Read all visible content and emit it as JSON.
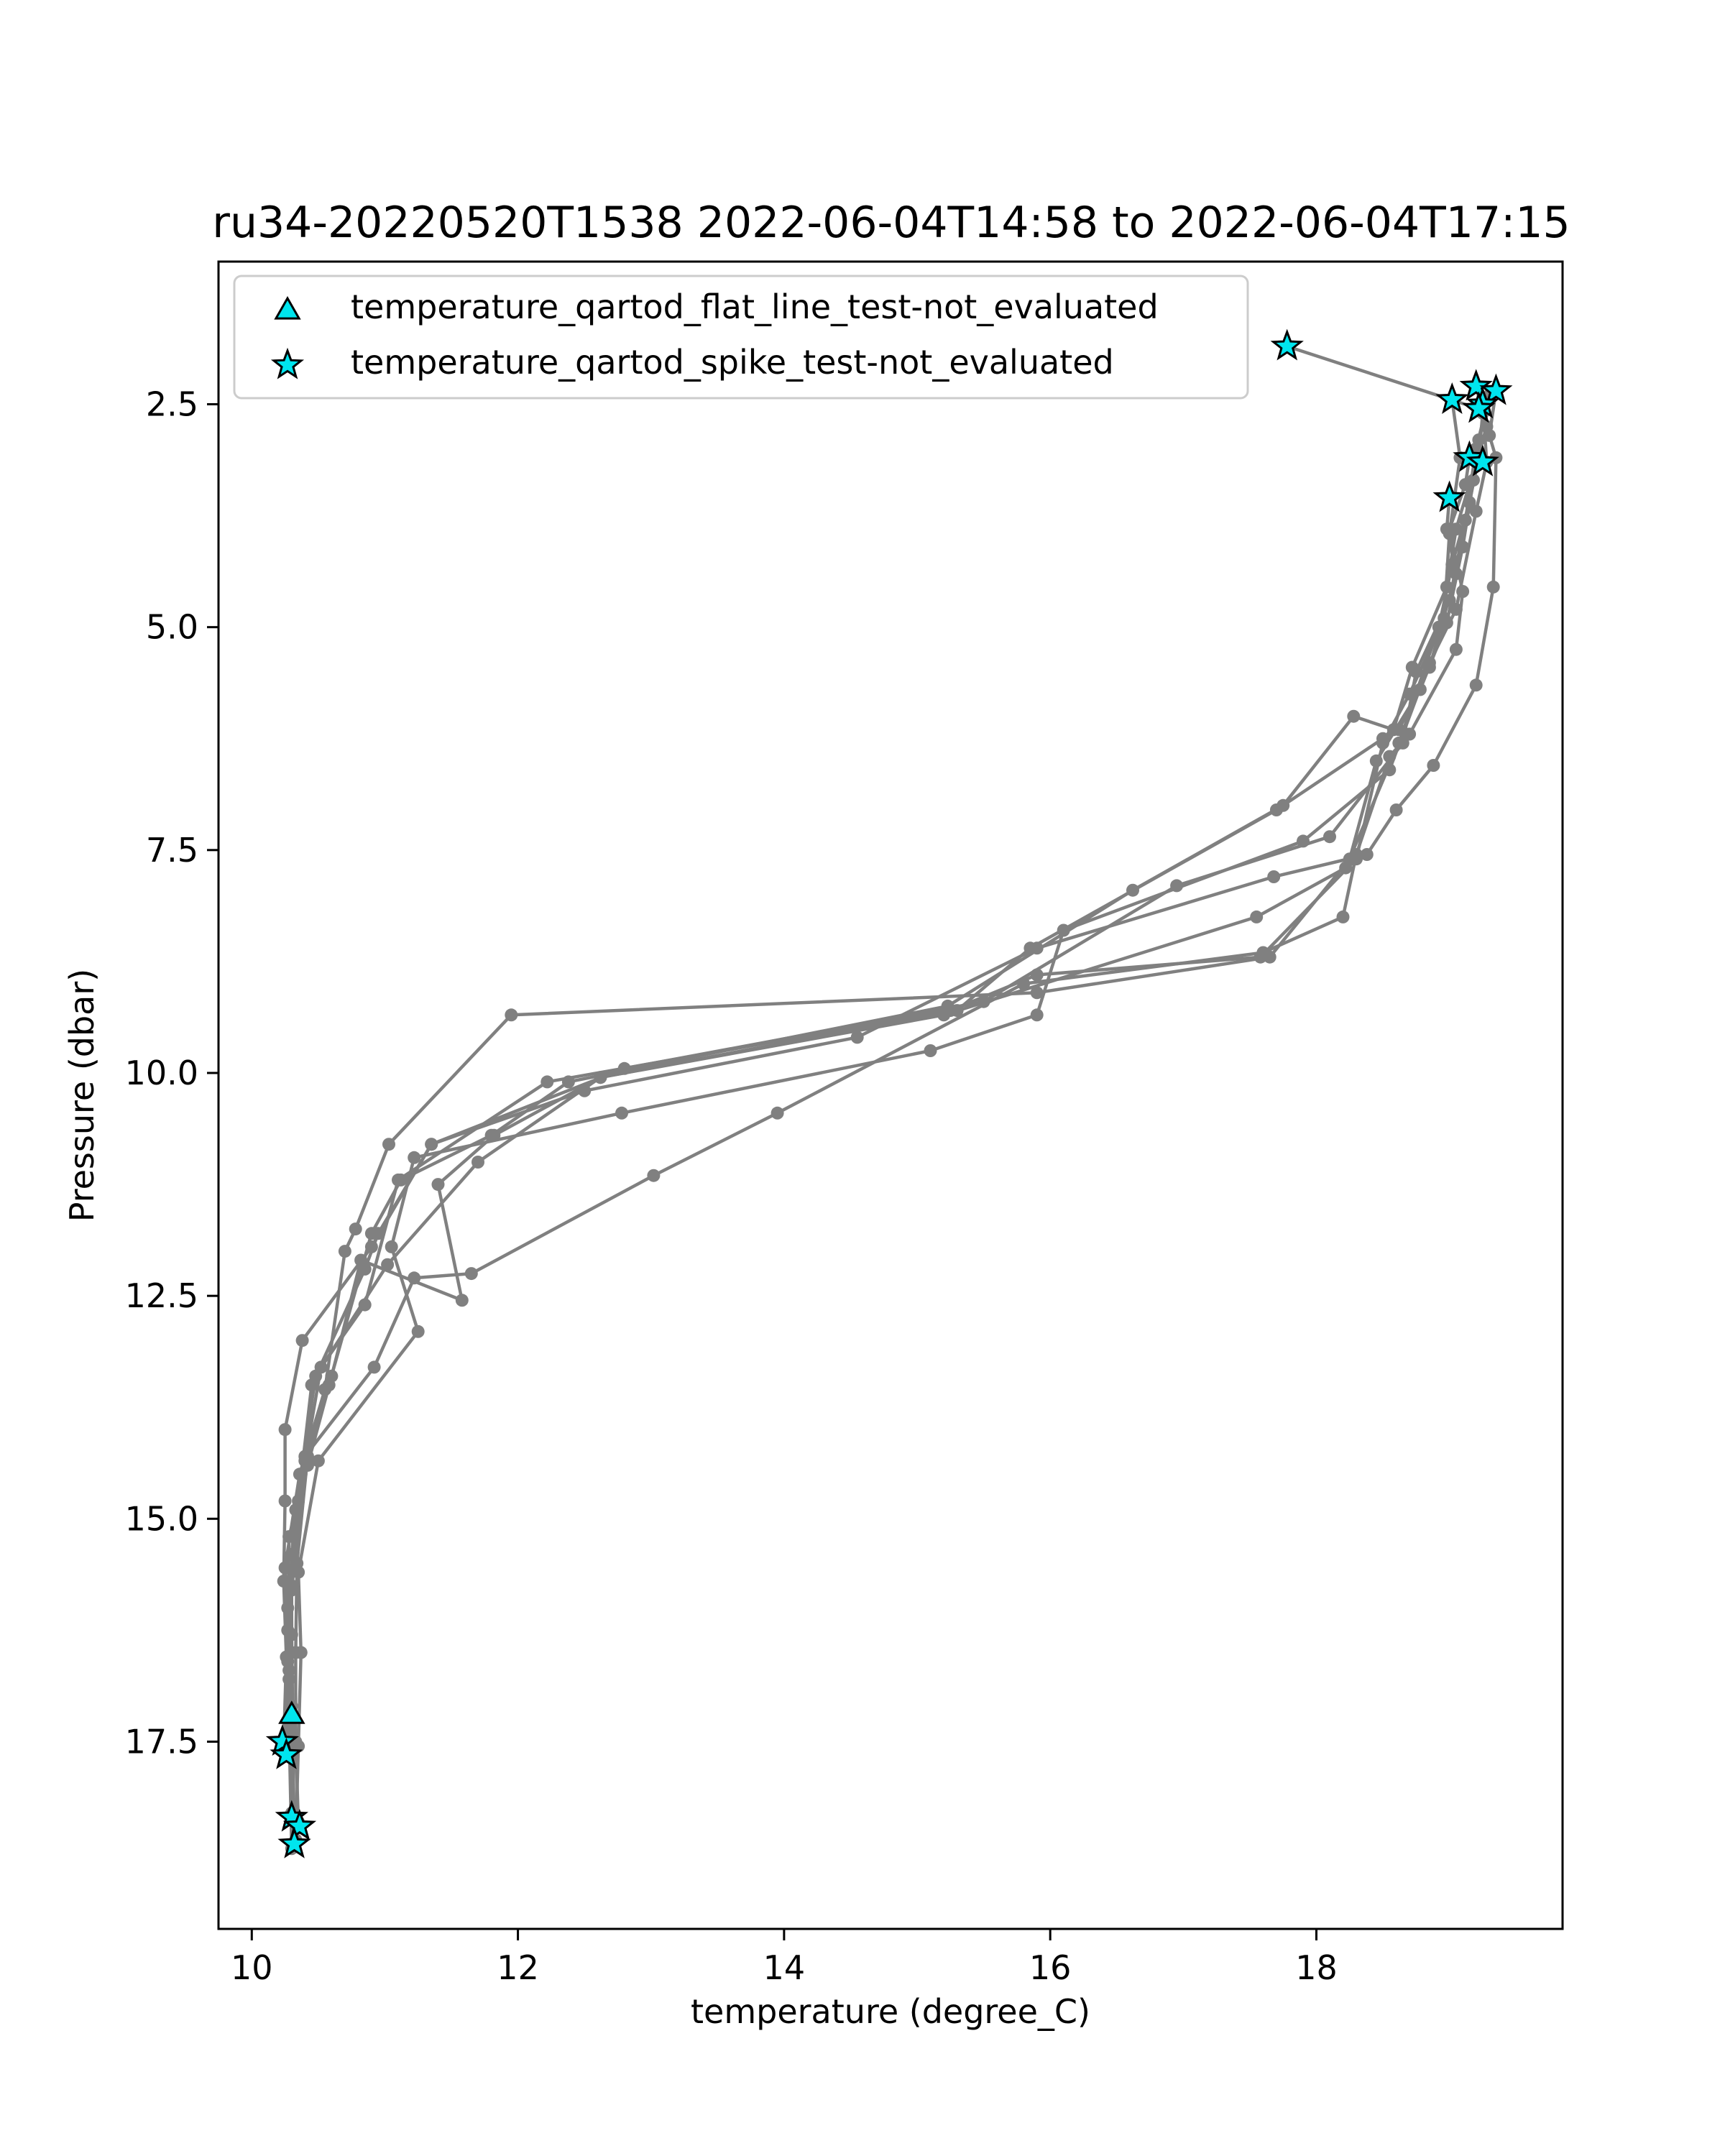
{
  "chart_data": {
    "type": "line",
    "title": "ru34-20220520T1538 2022-06-04T14:58 to 2022-06-04T17:15",
    "xlabel": "temperature (degree_C)",
    "ylabel": "Pressure (dbar)",
    "xlim": [
      9.75,
      19.85
    ],
    "ylim": [
      19.6,
      0.9
    ],
    "y_inverted": true,
    "x_ticks": [
      10,
      12,
      14,
      16,
      18
    ],
    "x_tick_labels": [
      "10",
      "12",
      "14",
      "16",
      "18"
    ],
    "y_ticks": [
      2.5,
      5.0,
      7.5,
      10.0,
      12.5,
      15.0,
      17.5
    ],
    "y_tick_labels": [
      "2.5",
      "5.0",
      "7.5",
      "10.0",
      "12.5",
      "15.0",
      "17.5"
    ],
    "grid": false,
    "legend_position": "top-left",
    "line_color": "#808080",
    "marker_color": "#00e5ee",
    "series": [
      {
        "points": [
          {
            "x": 17.78,
            "y": 1.85
          },
          {
            "x": 19.22,
            "y": 2.55
          },
          {
            "x": 19.28,
            "y": 2.75
          },
          {
            "x": 19.2,
            "y": 3.15
          },
          {
            "x": 19.05,
            "y": 3.9
          },
          {
            "x": 18.98,
            "y": 4.55
          },
          {
            "x": 18.72,
            "y": 5.45
          },
          {
            "x": 18.58,
            "y": 6.15
          },
          {
            "x": 18.28,
            "y": 6.0
          },
          {
            "x": 17.75,
            "y": 7.0
          },
          {
            "x": 16.62,
            "y": 7.95
          },
          {
            "x": 15.23,
            "y": 9.25
          },
          {
            "x": 12.38,
            "y": 10.1
          },
          {
            "x": 11.8,
            "y": 10.7
          },
          {
            "x": 11.12,
            "y": 11.2
          },
          {
            "x": 10.9,
            "y": 11.8
          },
          {
            "x": 10.58,
            "y": 13.5
          },
          {
            "x": 10.42,
            "y": 14.3
          },
          {
            "x": 10.34,
            "y": 15.5
          },
          {
            "x": 10.33,
            "y": 16.5
          },
          {
            "x": 10.33,
            "y": 17.5
          },
          {
            "x": 10.35,
            "y": 18.4
          }
        ]
      },
      {
        "points": [
          {
            "x": 19.02,
            "y": 2.45
          },
          {
            "x": 19.08,
            "y": 3.1
          },
          {
            "x": 19.0,
            "y": 3.95
          },
          {
            "x": 18.96,
            "y": 4.9
          },
          {
            "x": 18.7,
            "y": 5.75
          },
          {
            "x": 18.5,
            "y": 6.3
          },
          {
            "x": 18.3,
            "y": 7.6
          },
          {
            "x": 17.58,
            "y": 8.7
          },
          {
            "x": 15.9,
            "y": 8.9
          },
          {
            "x": 15.25,
            "y": 9.3
          },
          {
            "x": 12.22,
            "y": 10.1
          },
          {
            "x": 11.1,
            "y": 11.2
          },
          {
            "x": 10.85,
            "y": 12.6
          },
          {
            "x": 10.52,
            "y": 13.3
          },
          {
            "x": 10.4,
            "y": 14.35
          },
          {
            "x": 10.3,
            "y": 15.8
          },
          {
            "x": 10.28,
            "y": 16.8
          },
          {
            "x": 10.3,
            "y": 17.1
          }
        ]
      },
      {
        "points": [
          {
            "x": 19.2,
            "y": 2.3
          },
          {
            "x": 19.25,
            "y": 2.6
          },
          {
            "x": 19.22,
            "y": 3.1
          },
          {
            "x": 19.15,
            "y": 3.6
          },
          {
            "x": 19.02,
            "y": 4.3
          },
          {
            "x": 18.92,
            "y": 5.0
          },
          {
            "x": 18.62,
            "y": 6.3
          },
          {
            "x": 18.22,
            "y": 7.7
          },
          {
            "x": 17.55,
            "y": 8.25
          },
          {
            "x": 15.2,
            "y": 9.35
          },
          {
            "x": 12.62,
            "y": 10.05
          },
          {
            "x": 11.7,
            "y": 11.0
          },
          {
            "x": 11.02,
            "y": 12.15
          },
          {
            "x": 10.48,
            "y": 13.4
          },
          {
            "x": 10.37,
            "y": 14.5
          },
          {
            "x": 10.27,
            "y": 16.0
          },
          {
            "x": 10.25,
            "y": 17.6
          }
        ]
      },
      {
        "points": [
          {
            "x": 19.35,
            "y": 2.35
          },
          {
            "x": 19.3,
            "y": 2.85
          },
          {
            "x": 19.35,
            "y": 3.1
          },
          {
            "x": 19.33,
            "y": 4.55
          },
          {
            "x": 19.2,
            "y": 5.65
          },
          {
            "x": 18.88,
            "y": 6.55
          },
          {
            "x": 18.6,
            "y": 7.05
          },
          {
            "x": 18.38,
            "y": 7.55
          },
          {
            "x": 17.68,
            "y": 7.8
          },
          {
            "x": 15.9,
            "y": 8.6
          },
          {
            "x": 14.55,
            "y": 9.6
          },
          {
            "x": 12.5,
            "y": 10.2
          },
          {
            "x": 11.35,
            "y": 10.8
          },
          {
            "x": 10.95,
            "y": 11.8
          },
          {
            "x": 10.85,
            "y": 12.2
          },
          {
            "x": 10.45,
            "y": 13.5
          },
          {
            "x": 10.35,
            "y": 14.8
          },
          {
            "x": 10.3,
            "y": 15.75
          },
          {
            "x": 10.28,
            "y": 16.7
          },
          {
            "x": 10.3,
            "y": 18.3
          }
        ]
      },
      {
        "points": [
          {
            "x": 19.25,
            "y": 2.5
          },
          {
            "x": 19.28,
            "y": 3.15
          },
          {
            "x": 19.2,
            "y": 3.7
          },
          {
            "x": 19.05,
            "y": 4.8
          },
          {
            "x": 18.85,
            "y": 5.4
          },
          {
            "x": 18.55,
            "y": 6.6
          },
          {
            "x": 17.9,
            "y": 7.4
          },
          {
            "x": 16.1,
            "y": 8.4
          },
          {
            "x": 15.9,
            "y": 9.35
          },
          {
            "x": 15.1,
            "y": 9.75
          },
          {
            "x": 12.78,
            "y": 10.45
          },
          {
            "x": 11.22,
            "y": 10.95
          },
          {
            "x": 11.05,
            "y": 11.95
          },
          {
            "x": 11.25,
            "y": 12.9
          },
          {
            "x": 10.5,
            "y": 14.35
          },
          {
            "x": 10.35,
            "y": 15.6
          },
          {
            "x": 10.37,
            "y": 16.5
          },
          {
            "x": 10.35,
            "y": 17.55
          },
          {
            "x": 10.33,
            "y": 18.6
          }
        ]
      },
      {
        "points": [
          {
            "x": 19.15,
            "y": 3.1
          },
          {
            "x": 19.12,
            "y": 3.4
          },
          {
            "x": 19.0,
            "y": 3.9
          },
          {
            "x": 19.1,
            "y": 4.6
          },
          {
            "x": 19.05,
            "y": 5.25
          },
          {
            "x": 18.7,
            "y": 6.2
          },
          {
            "x": 18.55,
            "y": 6.45
          },
          {
            "x": 18.3,
            "y": 7.55
          },
          {
            "x": 18.2,
            "y": 8.25
          },
          {
            "x": 17.6,
            "y": 8.65
          },
          {
            "x": 15.8,
            "y": 9.0
          },
          {
            "x": 13.95,
            "y": 10.45
          },
          {
            "x": 13.02,
            "y": 11.15
          },
          {
            "x": 11.65,
            "y": 12.25
          },
          {
            "x": 11.22,
            "y": 12.3
          },
          {
            "x": 10.92,
            "y": 13.3
          },
          {
            "x": 10.4,
            "y": 14.3
          },
          {
            "x": 10.33,
            "y": 14.9
          },
          {
            "x": 10.3,
            "y": 15.4
          },
          {
            "x": 10.3,
            "y": 16.3
          },
          {
            "x": 10.32,
            "y": 18.65
          }
        ]
      },
      {
        "points": [
          {
            "x": 19.0,
            "y": 3.55
          },
          {
            "x": 18.98,
            "y": 3.9
          },
          {
            "x": 19.05,
            "y": 4.4
          },
          {
            "x": 18.85,
            "y": 5.45
          },
          {
            "x": 18.62,
            "y": 6.15
          },
          {
            "x": 18.5,
            "y": 6.25
          },
          {
            "x": 17.7,
            "y": 7.05
          },
          {
            "x": 15.85,
            "y": 8.6
          },
          {
            "x": 15.3,
            "y": 9.3
          },
          {
            "x": 12.62,
            "y": 10.05
          },
          {
            "x": 11.82,
            "y": 10.7
          },
          {
            "x": 11.4,
            "y": 11.25
          },
          {
            "x": 11.58,
            "y": 12.55
          },
          {
            "x": 10.82,
            "y": 12.1
          },
          {
            "x": 10.6,
            "y": 13.4
          },
          {
            "x": 10.42,
            "y": 14.4
          },
          {
            "x": 10.28,
            "y": 15.2
          },
          {
            "x": 10.27,
            "y": 16.25
          },
          {
            "x": 10.28,
            "y": 17.3
          },
          {
            "x": 10.3,
            "y": 18.7
          }
        ]
      },
      {
        "points": [
          {
            "x": 19.22,
            "y": 2.9
          },
          {
            "x": 19.18,
            "y": 3.35
          },
          {
            "x": 19.1,
            "y": 4.1
          },
          {
            "x": 18.98,
            "y": 4.95
          },
          {
            "x": 18.78,
            "y": 5.7
          },
          {
            "x": 18.45,
            "y": 6.5
          },
          {
            "x": 18.25,
            "y": 7.6
          },
          {
            "x": 17.65,
            "y": 8.7
          },
          {
            "x": 15.9,
            "y": 9.1
          },
          {
            "x": 11.95,
            "y": 9.35
          },
          {
            "x": 11.03,
            "y": 10.8
          },
          {
            "x": 10.78,
            "y": 11.75
          },
          {
            "x": 10.7,
            "y": 12.0
          },
          {
            "x": 10.55,
            "y": 13.55
          },
          {
            "x": 10.36,
            "y": 14.5
          },
          {
            "x": 10.25,
            "y": 15.55
          },
          {
            "x": 10.27,
            "y": 16.6
          },
          {
            "x": 10.27,
            "y": 17.65
          }
        ]
      },
      {
        "points": [
          {
            "x": 19.3,
            "y": 2.4
          },
          {
            "x": 19.2,
            "y": 3.0
          },
          {
            "x": 19.12,
            "y": 3.8
          },
          {
            "x": 19.0,
            "y": 4.7
          },
          {
            "x": 18.75,
            "y": 5.5
          },
          {
            "x": 18.65,
            "y": 6.3
          },
          {
            "x": 18.1,
            "y": 7.35
          },
          {
            "x": 16.95,
            "y": 7.9
          },
          {
            "x": 15.5,
            "y": 9.2
          },
          {
            "x": 12.8,
            "y": 9.95
          },
          {
            "x": 11.35,
            "y": 10.8
          },
          {
            "x": 10.9,
            "y": 11.95
          },
          {
            "x": 10.38,
            "y": 13.0
          },
          {
            "x": 10.25,
            "y": 14.0
          },
          {
            "x": 10.25,
            "y": 14.8
          },
          {
            "x": 10.24,
            "y": 15.7
          },
          {
            "x": 10.26,
            "y": 16.55
          },
          {
            "x": 10.24,
            "y": 17.55
          }
        ]
      }
    ],
    "flags": [
      {
        "name": "temperature_qartod_flat_line_test-not_evaluated",
        "marker": "triangle",
        "points": [
          {
            "x": 10.3,
            "y": 17.2
          }
        ]
      },
      {
        "name": "temperature_qartod_spike_test-not_evaluated",
        "marker": "star",
        "points": [
          {
            "x": 17.78,
            "y": 1.85
          },
          {
            "x": 19.2,
            "y": 2.3
          },
          {
            "x": 19.35,
            "y": 2.35
          },
          {
            "x": 19.02,
            "y": 2.45
          },
          {
            "x": 19.25,
            "y": 2.5
          },
          {
            "x": 19.22,
            "y": 2.55
          },
          {
            "x": 19.15,
            "y": 3.1
          },
          {
            "x": 19.25,
            "y": 3.15
          },
          {
            "x": 19.0,
            "y": 3.55
          },
          {
            "x": 10.23,
            "y": 17.5
          },
          {
            "x": 10.26,
            "y": 17.65
          },
          {
            "x": 10.3,
            "y": 18.35
          },
          {
            "x": 10.36,
            "y": 18.45
          },
          {
            "x": 10.32,
            "y": 18.65
          }
        ]
      }
    ]
  }
}
